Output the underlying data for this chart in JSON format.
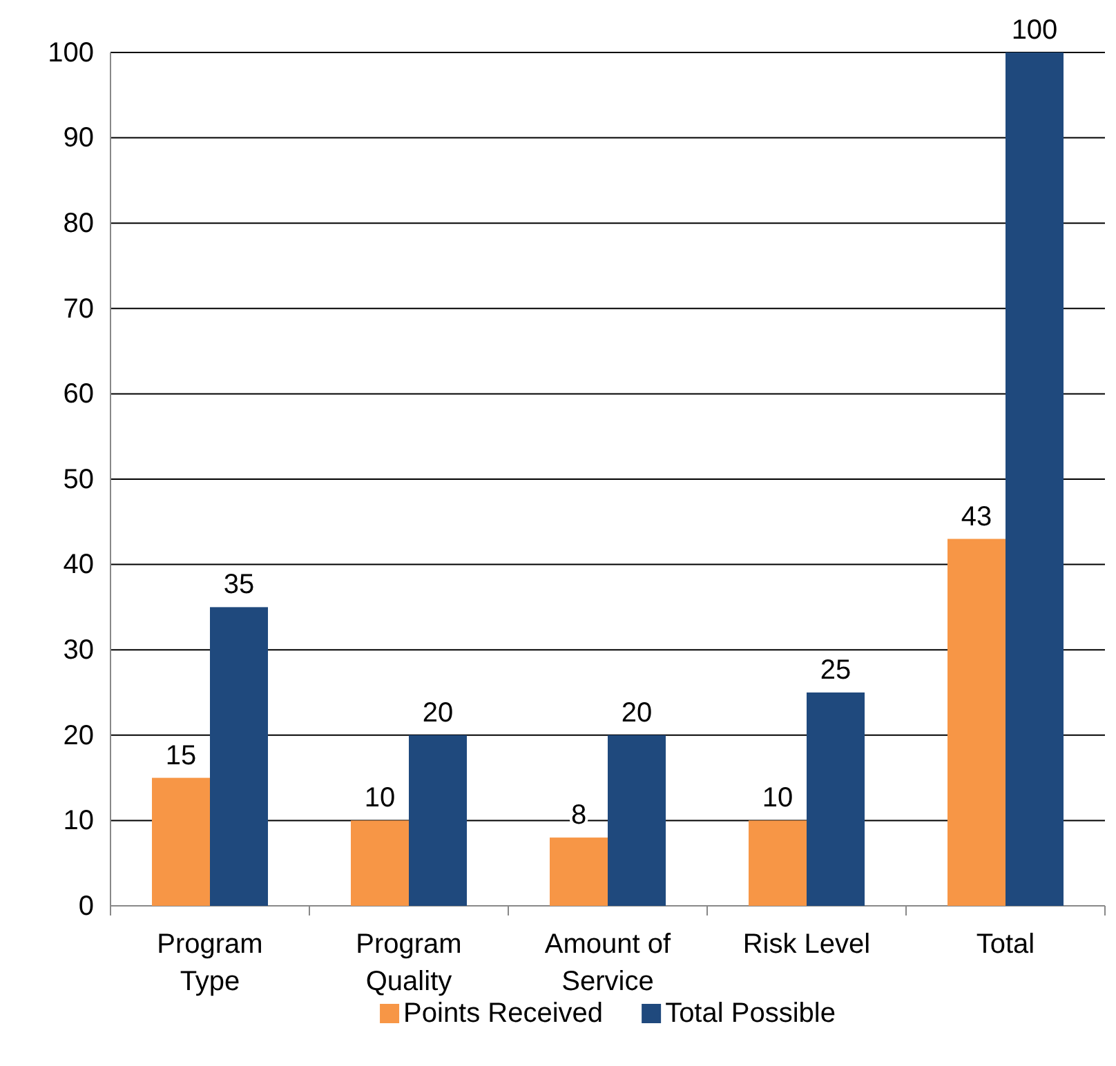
{
  "chart_data": {
    "type": "bar",
    "categories": [
      "Program Type",
      "Program Quality",
      "Amount of Service",
      "Risk Level",
      "Total"
    ],
    "series": [
      {
        "name": "Points Received",
        "color": "#f79646",
        "values": [
          15,
          10,
          8,
          10,
          43
        ]
      },
      {
        "name": "Total Possible",
        "color": "#1f497d",
        "values": [
          35,
          20,
          20,
          25,
          100
        ]
      }
    ],
    "ylim": [
      0,
      100
    ],
    "yticks": [
      0,
      10,
      20,
      30,
      40,
      50,
      60,
      70,
      80,
      90,
      100
    ],
    "grid": "y",
    "legend": "bottom",
    "data_labels": true
  }
}
